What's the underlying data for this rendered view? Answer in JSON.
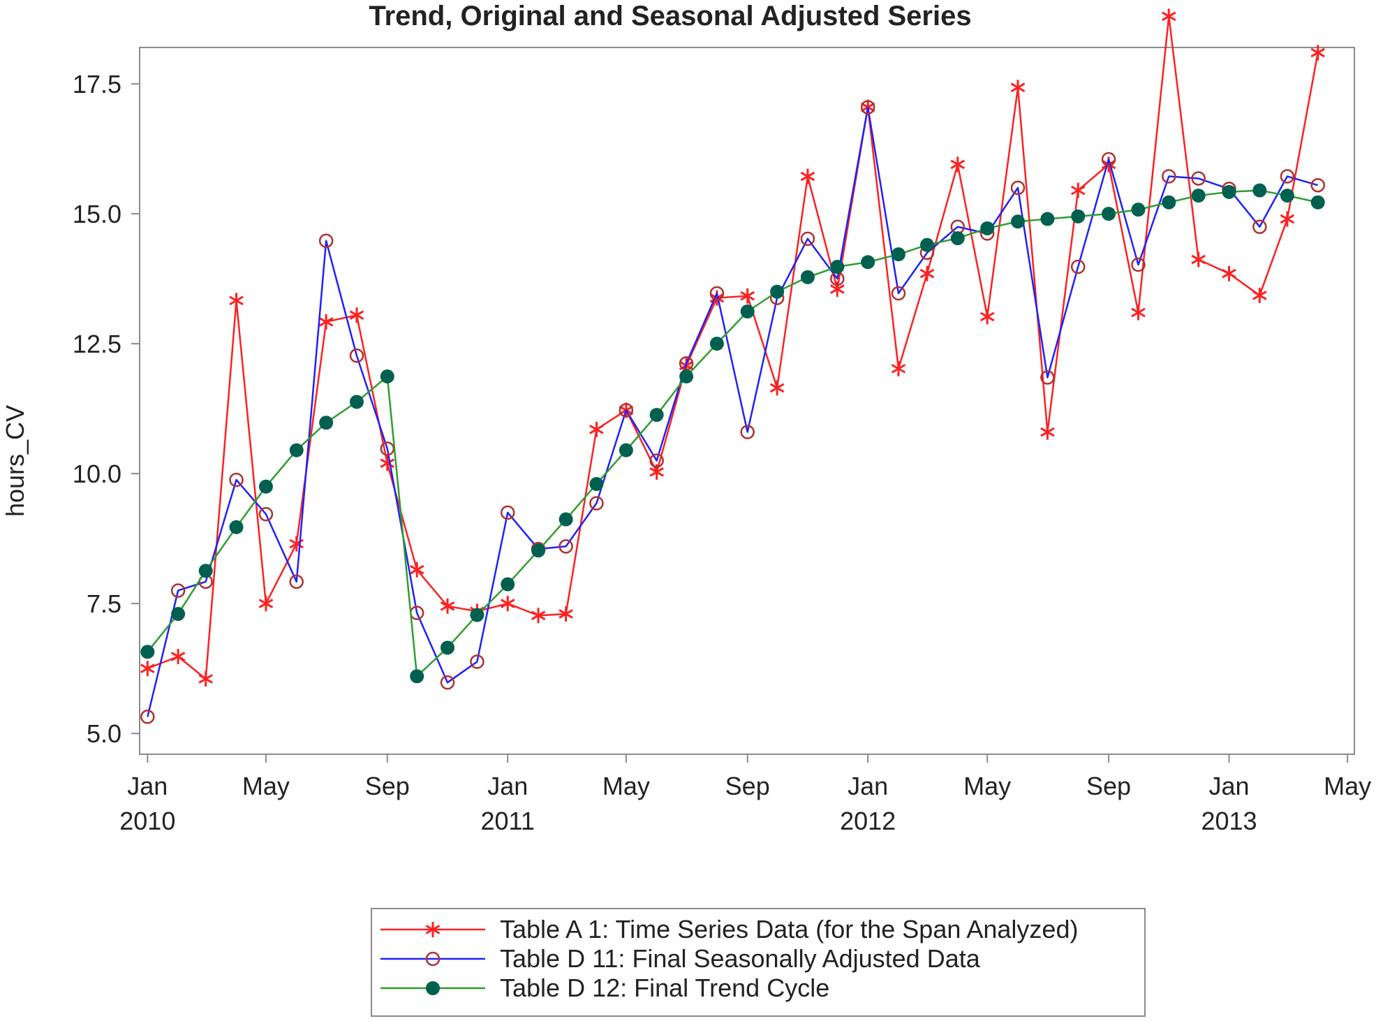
{
  "chart_data": {
    "type": "line",
    "title": "Trend, Original and Seasonal Adjusted Series",
    "xlabel": "",
    "ylabel": "hours_CV",
    "x": [
      "2010-01",
      "2010-02",
      "2010-03",
      "2010-04",
      "2010-05",
      "2010-06",
      "2010-07",
      "2010-08",
      "2010-09",
      "2010-10",
      "2010-11",
      "2010-12",
      "2011-01",
      "2011-02",
      "2011-03",
      "2011-04",
      "2011-05",
      "2011-06",
      "2011-07",
      "2011-08",
      "2011-09",
      "2011-10",
      "2011-11",
      "2011-12",
      "2012-01",
      "2012-02",
      "2012-03",
      "2012-04",
      "2012-05",
      "2012-06",
      "2012-07",
      "2012-08",
      "2012-09",
      "2012-10",
      "2012-11",
      "2012-12",
      "2013-01",
      "2013-02",
      "2013-03",
      "2013-04"
    ],
    "xlim": [
      "2009-12-24",
      "2013-05-08"
    ],
    "x_ticks": [
      {
        "date": "2010-01",
        "line1": "Jan",
        "line2": "2010"
      },
      {
        "date": "2010-05",
        "line1": "May",
        "line2": ""
      },
      {
        "date": "2010-09",
        "line1": "Sep",
        "line2": ""
      },
      {
        "date": "2011-01",
        "line1": "Jan",
        "line2": "2011"
      },
      {
        "date": "2011-05",
        "line1": "May",
        "line2": ""
      },
      {
        "date": "2011-09",
        "line1": "Sep",
        "line2": ""
      },
      {
        "date": "2012-01",
        "line1": "Jan",
        "line2": "2012"
      },
      {
        "date": "2012-05",
        "line1": "May",
        "line2": ""
      },
      {
        "date": "2012-09",
        "line1": "Sep",
        "line2": ""
      },
      {
        "date": "2013-01",
        "line1": "Jan",
        "line2": "2013"
      },
      {
        "date": "2013-05",
        "line1": "May",
        "line2": ""
      }
    ],
    "ylim": [
      4.6,
      18.2
    ],
    "y_ticks": [
      5.0,
      7.5,
      10.0,
      12.5,
      15.0,
      17.5
    ],
    "y_tick_labels": [
      "5.0",
      "7.5",
      "10.0",
      "12.5",
      "15.0",
      "17.5"
    ],
    "grid": false,
    "legend_position": "bottom",
    "series": [
      {
        "name": "Table A 1:  Time Series Data (for the Span Analyzed)",
        "color": "#ff2020",
        "marker": "asterisk",
        "values": [
          6.25,
          6.48,
          6.05,
          13.33,
          7.5,
          8.65,
          12.92,
          13.05,
          10.2,
          8.15,
          7.45,
          7.35,
          7.5,
          7.27,
          7.3,
          10.85,
          11.22,
          10.03,
          12.08,
          13.38,
          13.42,
          11.65,
          15.72,
          13.55,
          17.05,
          12.02,
          13.85,
          15.95,
          13.02,
          17.43,
          10.8,
          15.45,
          15.95,
          13.1,
          18.8,
          14.12,
          13.85,
          13.43,
          14.9,
          18.1
        ]
      },
      {
        "name": "Table D 11:  Final Seasonally Adjusted Data",
        "color": "#2020ff",
        "marker_color": "#b03030",
        "marker": "circle",
        "values": [
          5.32,
          7.75,
          7.92,
          9.88,
          9.22,
          7.92,
          14.48,
          12.27,
          10.48,
          7.32,
          5.98,
          6.38,
          9.25,
          8.55,
          8.6,
          9.43,
          11.22,
          10.25,
          12.12,
          13.47,
          10.8,
          13.38,
          14.52,
          13.75,
          17.05,
          13.47,
          14.25,
          14.75,
          14.62,
          15.5,
          11.85,
          13.98,
          16.05,
          14.02,
          15.72,
          15.68,
          15.48,
          14.75,
          15.72,
          15.55
        ]
      },
      {
        "name": "Table D 12:  Final Trend Cycle",
        "color": "#2e9e2e",
        "marker_color": "#006050",
        "marker": "filled-circle",
        "values": [
          6.57,
          7.3,
          8.13,
          8.97,
          9.75,
          10.45,
          10.98,
          11.38,
          11.87,
          6.1,
          6.65,
          7.28,
          7.87,
          8.52,
          9.12,
          9.8,
          10.45,
          11.13,
          11.87,
          12.5,
          13.12,
          13.5,
          13.78,
          13.98,
          14.07,
          14.22,
          14.4,
          14.53,
          14.72,
          14.85,
          14.9,
          14.95,
          15.0,
          15.08,
          15.22,
          15.35,
          15.42,
          15.45,
          15.35,
          15.22
        ]
      }
    ]
  }
}
